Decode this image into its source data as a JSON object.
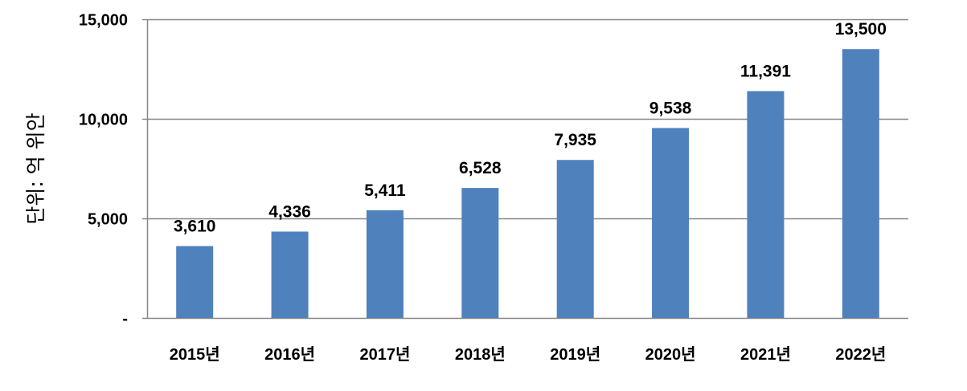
{
  "chart_data": {
    "type": "bar",
    "title": "",
    "xlabel": "",
    "ylabel": "단위: 억 위안",
    "categories": [
      "2015년",
      "2016년",
      "2017년",
      "2018년",
      "2019년",
      "2020년",
      "2021년",
      "2022년"
    ],
    "values": [
      3610,
      4336,
      5411,
      6528,
      7935,
      9538,
      11391,
      13500
    ],
    "value_labels": [
      "3,610",
      "4,336",
      "5,411",
      "6,528",
      "7,935",
      "9,538",
      "11,391",
      "13,500"
    ],
    "ylim": [
      0,
      15000
    ],
    "yticks": [
      0,
      5000,
      10000,
      15000
    ],
    "ytick_labels": [
      "-",
      "5,000",
      "10,000",
      "15,000"
    ],
    "grid": true,
    "legend": "none",
    "colors": {
      "bar": "#4f81bd",
      "grid": "#868686",
      "axis": "#868686"
    }
  }
}
